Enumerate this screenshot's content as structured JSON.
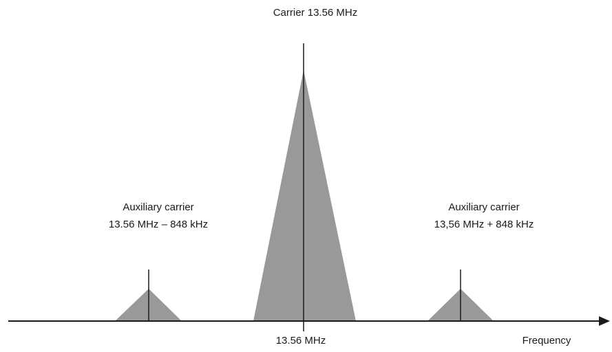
{
  "diagram": {
    "carrier_label": "Carrier 13.56 MHz",
    "center_tick_label": "13.56 MHz",
    "axis_label": "Frequency",
    "left_sideband": {
      "line1": "Auxiliary carrier",
      "line2": "13.56 MHz – 848 kHz"
    },
    "right_sideband": {
      "line1": "Auxiliary carrier",
      "line2": "13,56 MHz + 848 kHz"
    },
    "colors": {
      "peak_fill": "#999999",
      "line": "#1a1a1a"
    }
  }
}
